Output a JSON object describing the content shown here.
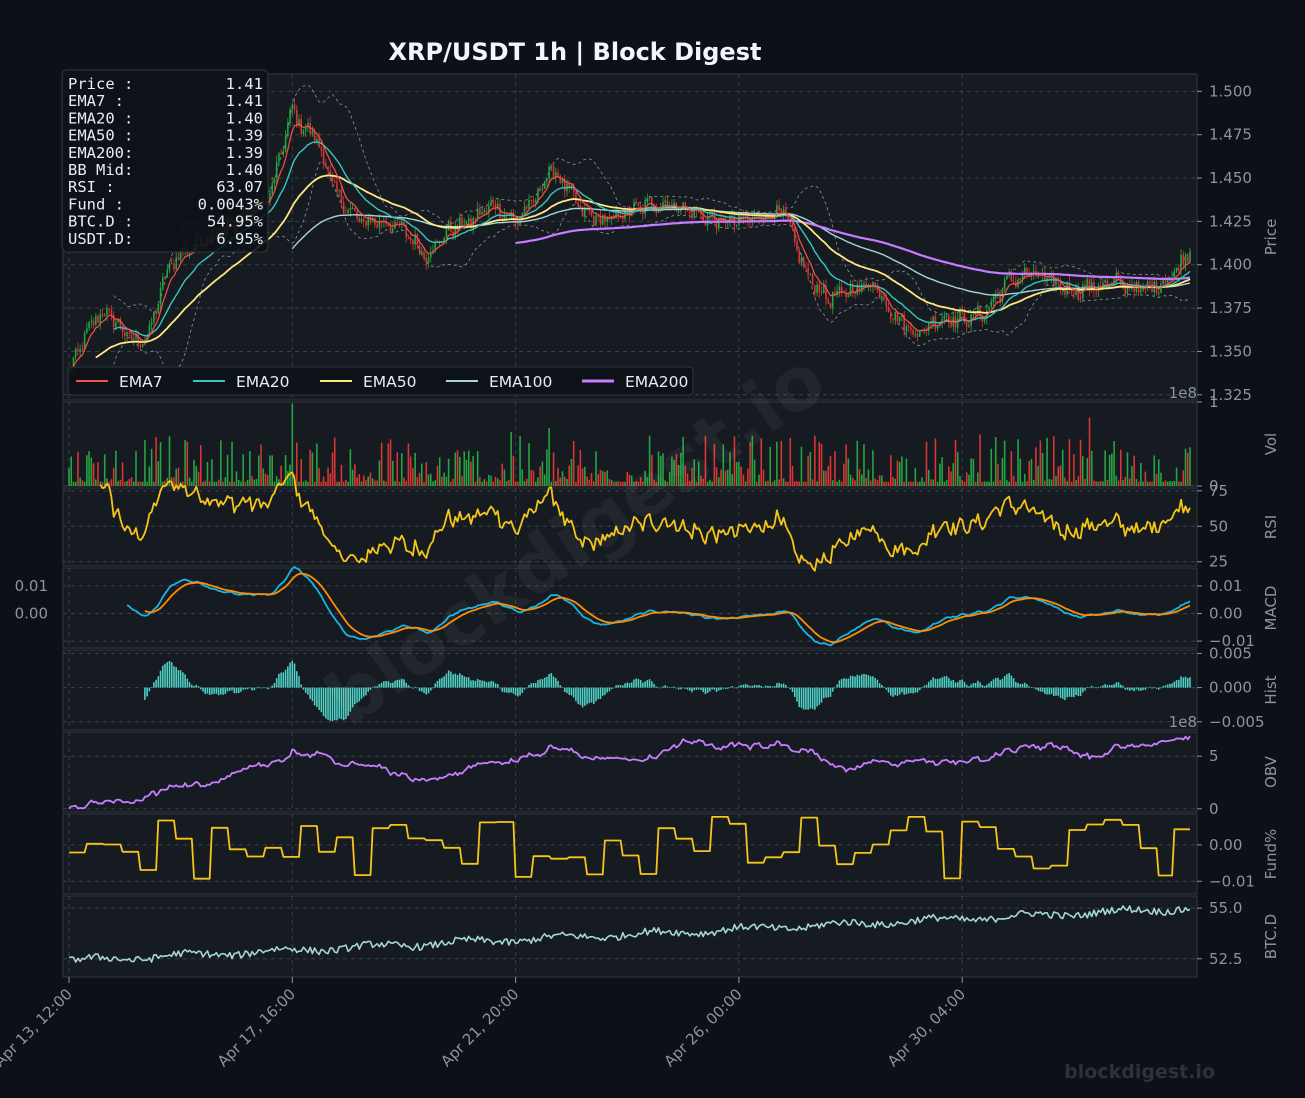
{
  "chart_data": {
    "type": "line",
    "title": "XRP/USDT  1h  |  Block Digest",
    "watermark": "blockdigest.io",
    "footer_brand": "blockdigest.io",
    "colors": {
      "background": "#0d1117",
      "panel": "#161b22",
      "candle_up": "#26a641",
      "candle_down": "#da3633",
      "ema7": "#f85149",
      "ema20": "#39c5bb",
      "ema50": "#ffe680",
      "ema100": "#a5d6d6",
      "ema200": "#c77dff",
      "rsi": "#f5c518",
      "macd": "#19b4e6",
      "signal": "#ff8c00",
      "hist": "#4fd1c5",
      "obv": "#c77dff",
      "funding": "#f5c518",
      "btcd": "#a5d6d6",
      "bb": "#8b949e"
    },
    "x_ticks": [
      "Apr 13, 12:00",
      "Apr 17, 16:00",
      "Apr 21, 20:00",
      "Apr 26, 00:00",
      "Apr 30, 04:00"
    ],
    "x_tick_hours": [
      0,
      100,
      200,
      300,
      400
    ],
    "x_range_hours": [
      0,
      502
    ],
    "info_box": [
      {
        "label": "Price :",
        "value": "1.41"
      },
      {
        "label": "EMA7  :",
        "value": "1.41"
      },
      {
        "label": "EMA20 :",
        "value": "1.40"
      },
      {
        "label": "EMA50 :",
        "value": "1.39"
      },
      {
        "label": "EMA200:",
        "value": "1.39"
      },
      {
        "label": "BB Mid:",
        "value": "1.40"
      },
      {
        "label": "RSI   :",
        "value": "63.07"
      },
      {
        "label": "Fund  :",
        "value": "0.0043%"
      },
      {
        "label": "BTC.D :",
        "value": "54.95%"
      },
      {
        "label": "USDT.D:",
        "value": "6.95%"
      }
    ],
    "legend": [
      {
        "name": "EMA7",
        "key": "ema7"
      },
      {
        "name": "EMA20",
        "key": "ema20"
      },
      {
        "name": "EMA50",
        "key": "ema50"
      },
      {
        "name": "EMA100",
        "key": "ema100"
      },
      {
        "name": "EMA200",
        "key": "ema200"
      }
    ],
    "panels": {
      "price": {
        "ylabel": "Price",
        "ylim": [
          1.322,
          1.51
        ],
        "ticks": [
          "1.325",
          "1.350",
          "1.375",
          "1.400",
          "1.425",
          "1.450",
          "1.475",
          "1.500"
        ],
        "tick_values": [
          1.325,
          1.35,
          1.375,
          1.4,
          1.425,
          1.45,
          1.475,
          1.5
        ],
        "anchors_hours": [
          0,
          6,
          12,
          18,
          24,
          30,
          36,
          42,
          48,
          54,
          60,
          70,
          80,
          90,
          96,
          100,
          104,
          110,
          120,
          130,
          140,
          150,
          160,
          170,
          180,
          190,
          200,
          210,
          215,
          220,
          230,
          240,
          250,
          260,
          270,
          280,
          290,
          300,
          310,
          320,
          330,
          340,
          350,
          360,
          370,
          380,
          390,
          400,
          410,
          420,
          430,
          440,
          450,
          460,
          470,
          480,
          490,
          495,
          502
        ],
        "anchors_price": [
          1.338,
          1.355,
          1.37,
          1.372,
          1.362,
          1.355,
          1.36,
          1.39,
          1.405,
          1.41,
          1.415,
          1.42,
          1.43,
          1.44,
          1.47,
          1.49,
          1.48,
          1.475,
          1.44,
          1.425,
          1.425,
          1.42,
          1.405,
          1.42,
          1.425,
          1.435,
          1.425,
          1.44,
          1.455,
          1.45,
          1.43,
          1.425,
          1.43,
          1.435,
          1.435,
          1.43,
          1.425,
          1.425,
          1.428,
          1.43,
          1.395,
          1.38,
          1.385,
          1.39,
          1.37,
          1.36,
          1.37,
          1.368,
          1.372,
          1.39,
          1.395,
          1.39,
          1.385,
          1.388,
          1.39,
          1.385,
          1.39,
          1.395,
          1.41
        ]
      },
      "volume": {
        "ylabel": "Vol",
        "ylim": [
          0,
          1
        ],
        "ticks": [
          "0",
          "1"
        ],
        "tick_values": [
          0,
          1
        ],
        "multiplier": "1e8"
      },
      "rsi": {
        "ylabel": "RSI",
        "ylim": [
          22,
          77
        ],
        "ticks": [
          "25",
          "50",
          "75"
        ],
        "tick_values": [
          25,
          50,
          75
        ],
        "last": 63.07
      },
      "macd": {
        "ylabel": "MACD",
        "ylim": [
          -0.0125,
          0.0165
        ],
        "ticks": [
          "0.01",
          "0.00",
          "−0.01"
        ],
        "tick_values": [
          0.01,
          0.0,
          -0.01
        ],
        "left_ticks": [
          "0.01",
          "0.00"
        ],
        "left_tick_values": [
          0.01,
          0.0
        ]
      },
      "hist": {
        "ylabel": "Hist",
        "ylim": [
          -0.0062,
          0.0055
        ],
        "ticks": [
          "0.005",
          "0.000",
          "−0.005"
        ],
        "tick_values": [
          0.005,
          0.0,
          -0.005
        ]
      },
      "obv": {
        "ylabel": "OBV",
        "ylim": [
          -0.3,
          7.3
        ],
        "ticks": [
          "0",
          "5"
        ],
        "tick_values": [
          0,
          5
        ],
        "multiplier": "1e8"
      },
      "funding": {
        "ylabel": "Fund%",
        "ylim": [
          -0.0135,
          0.0085
        ],
        "ticks": [
          "0.00",
          "−0.01"
        ],
        "tick_values": [
          0.0,
          -0.01
        ],
        "last": 0.0043
      },
      "btcd": {
        "ylabel": "BTC.D",
        "ylim": [
          51.6,
          55.6
        ],
        "ticks": [
          "52.5",
          "55.0"
        ],
        "tick_values": [
          52.5,
          55.0
        ],
        "last": 54.95
      }
    }
  }
}
